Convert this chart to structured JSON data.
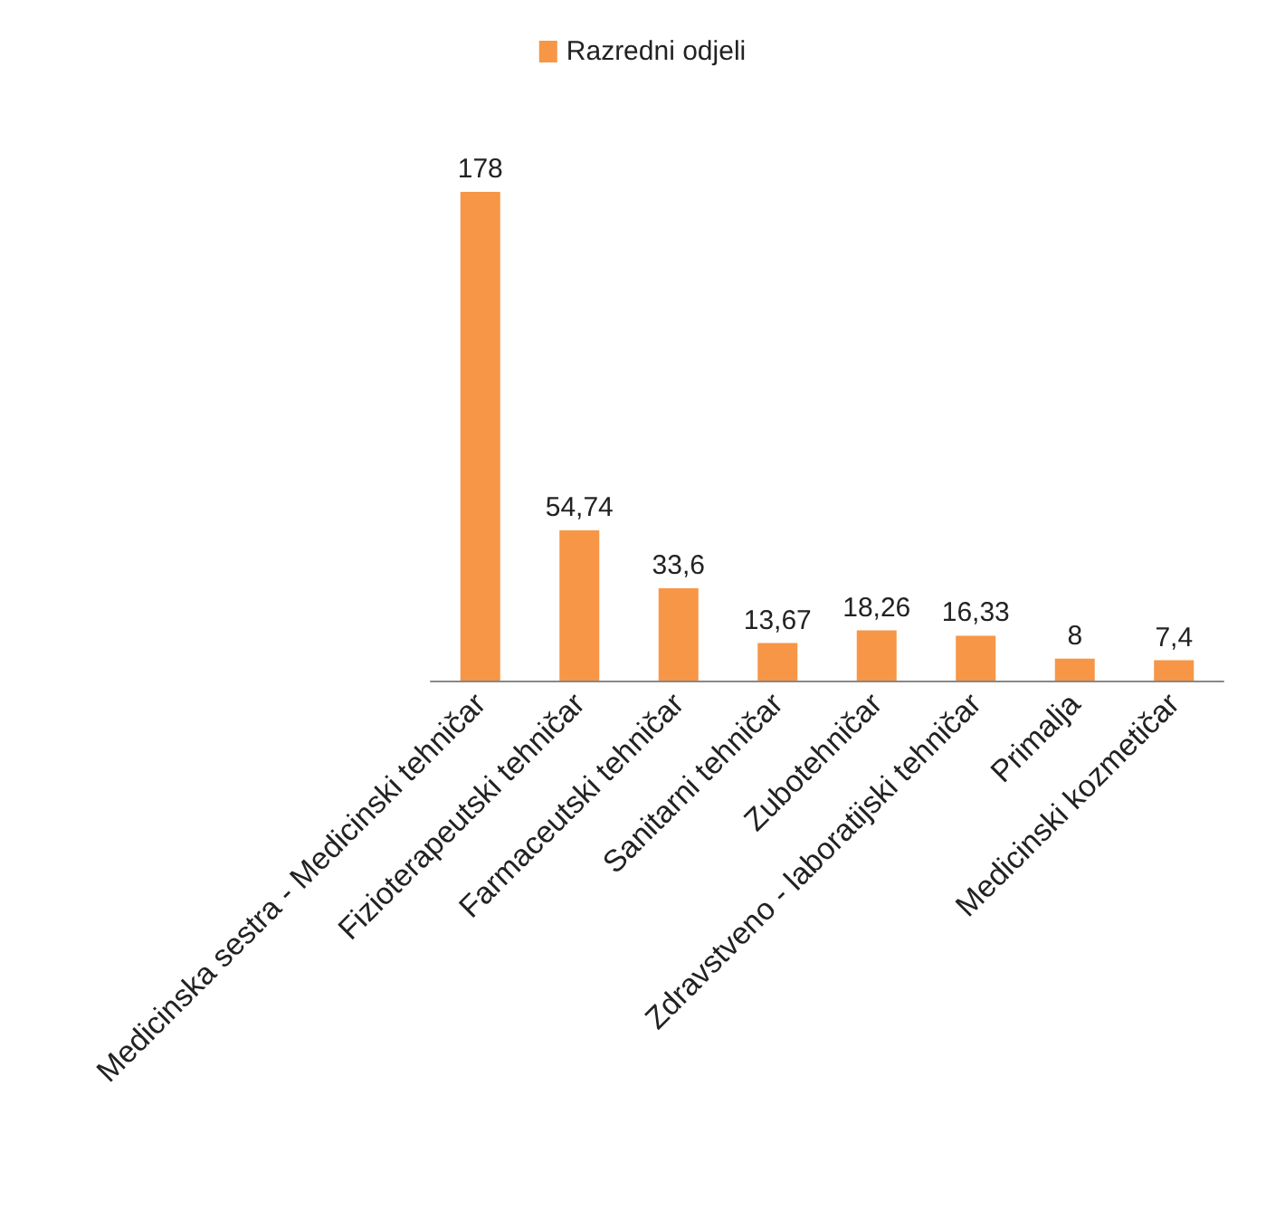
{
  "chart_data": {
    "type": "bar",
    "categories": [
      "Medicinska sestra - Medicinski tehničar",
      "Fizioterapeutski tehničar",
      "Farmaceutski tehničar",
      "Sanitarni tehničar",
      "Zubotehničar",
      "Zdravstveno - laboratijski tehničar",
      "Primalja",
      "Medicinski kozmetičar"
    ],
    "series": [
      {
        "name": "Razredni odjeli",
        "color": "#f79646",
        "values": [
          178,
          54.74,
          33.6,
          13.67,
          18.26,
          16.33,
          8,
          7.4
        ],
        "value_labels": [
          "178",
          "54,74",
          "33,6",
          "13,67",
          "18,26",
          "16,33",
          "8",
          "7,4"
        ]
      }
    ],
    "legend": "top",
    "tick_labels": "x"
  }
}
